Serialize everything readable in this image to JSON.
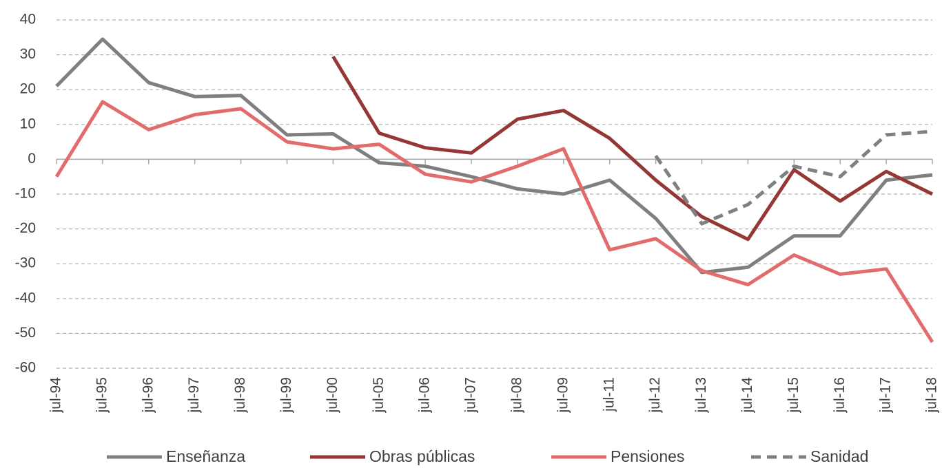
{
  "chart_data": {
    "type": "line",
    "categories": [
      "jul-94",
      "jul-95",
      "jul-96",
      "jul-97",
      "jul-98",
      "jul-99",
      "jul-00",
      "jul-05",
      "jul-06",
      "jul-07",
      "jul-08",
      "jul-09",
      "jul-11",
      "jul-12",
      "jul-13",
      "jul-14",
      "jul-15",
      "jul-16",
      "jul-17",
      "jul-18"
    ],
    "series": [
      {
        "name": "Enseñanza",
        "color": "#7f7f7f",
        "dashed": false,
        "values": [
          21,
          34.5,
          22,
          18,
          18.3,
          7,
          7.3,
          -1,
          -2,
          -5,
          -8.5,
          -10,
          -6,
          -17,
          -32.5,
          -31,
          -22,
          -22,
          -6,
          -4.5
        ]
      },
      {
        "name": "Obras públicas",
        "color": "#953735",
        "dashed": false,
        "values": [
          null,
          null,
          null,
          null,
          null,
          null,
          29.5,
          7.5,
          3.3,
          1.8,
          11.5,
          14,
          6,
          -6,
          -16.5,
          -23,
          -3,
          -12,
          -3.5,
          -10
        ]
      },
      {
        "name": "Pensiones",
        "color": "#e26b6b",
        "dashed": false,
        "values": [
          -5,
          16.5,
          8.5,
          12.8,
          14.5,
          5,
          3,
          4.3,
          -4.3,
          -6.5,
          -2,
          3,
          -26,
          -22.8,
          -32,
          -36,
          -27.5,
          -33,
          -31.5,
          -52.5
        ]
      },
      {
        "name": "Sanidad",
        "color": "#808080",
        "dashed": true,
        "values": [
          null,
          null,
          null,
          null,
          null,
          null,
          null,
          null,
          null,
          null,
          null,
          null,
          null,
          1,
          -18.5,
          -13,
          -2,
          -5,
          7,
          8
        ]
      }
    ],
    "ylim": [
      -60,
      40
    ],
    "yticks": [
      -60,
      -50,
      -40,
      -30,
      -20,
      -10,
      0,
      10,
      20,
      30,
      40
    ],
    "grid": true,
    "legend": "bottom"
  }
}
